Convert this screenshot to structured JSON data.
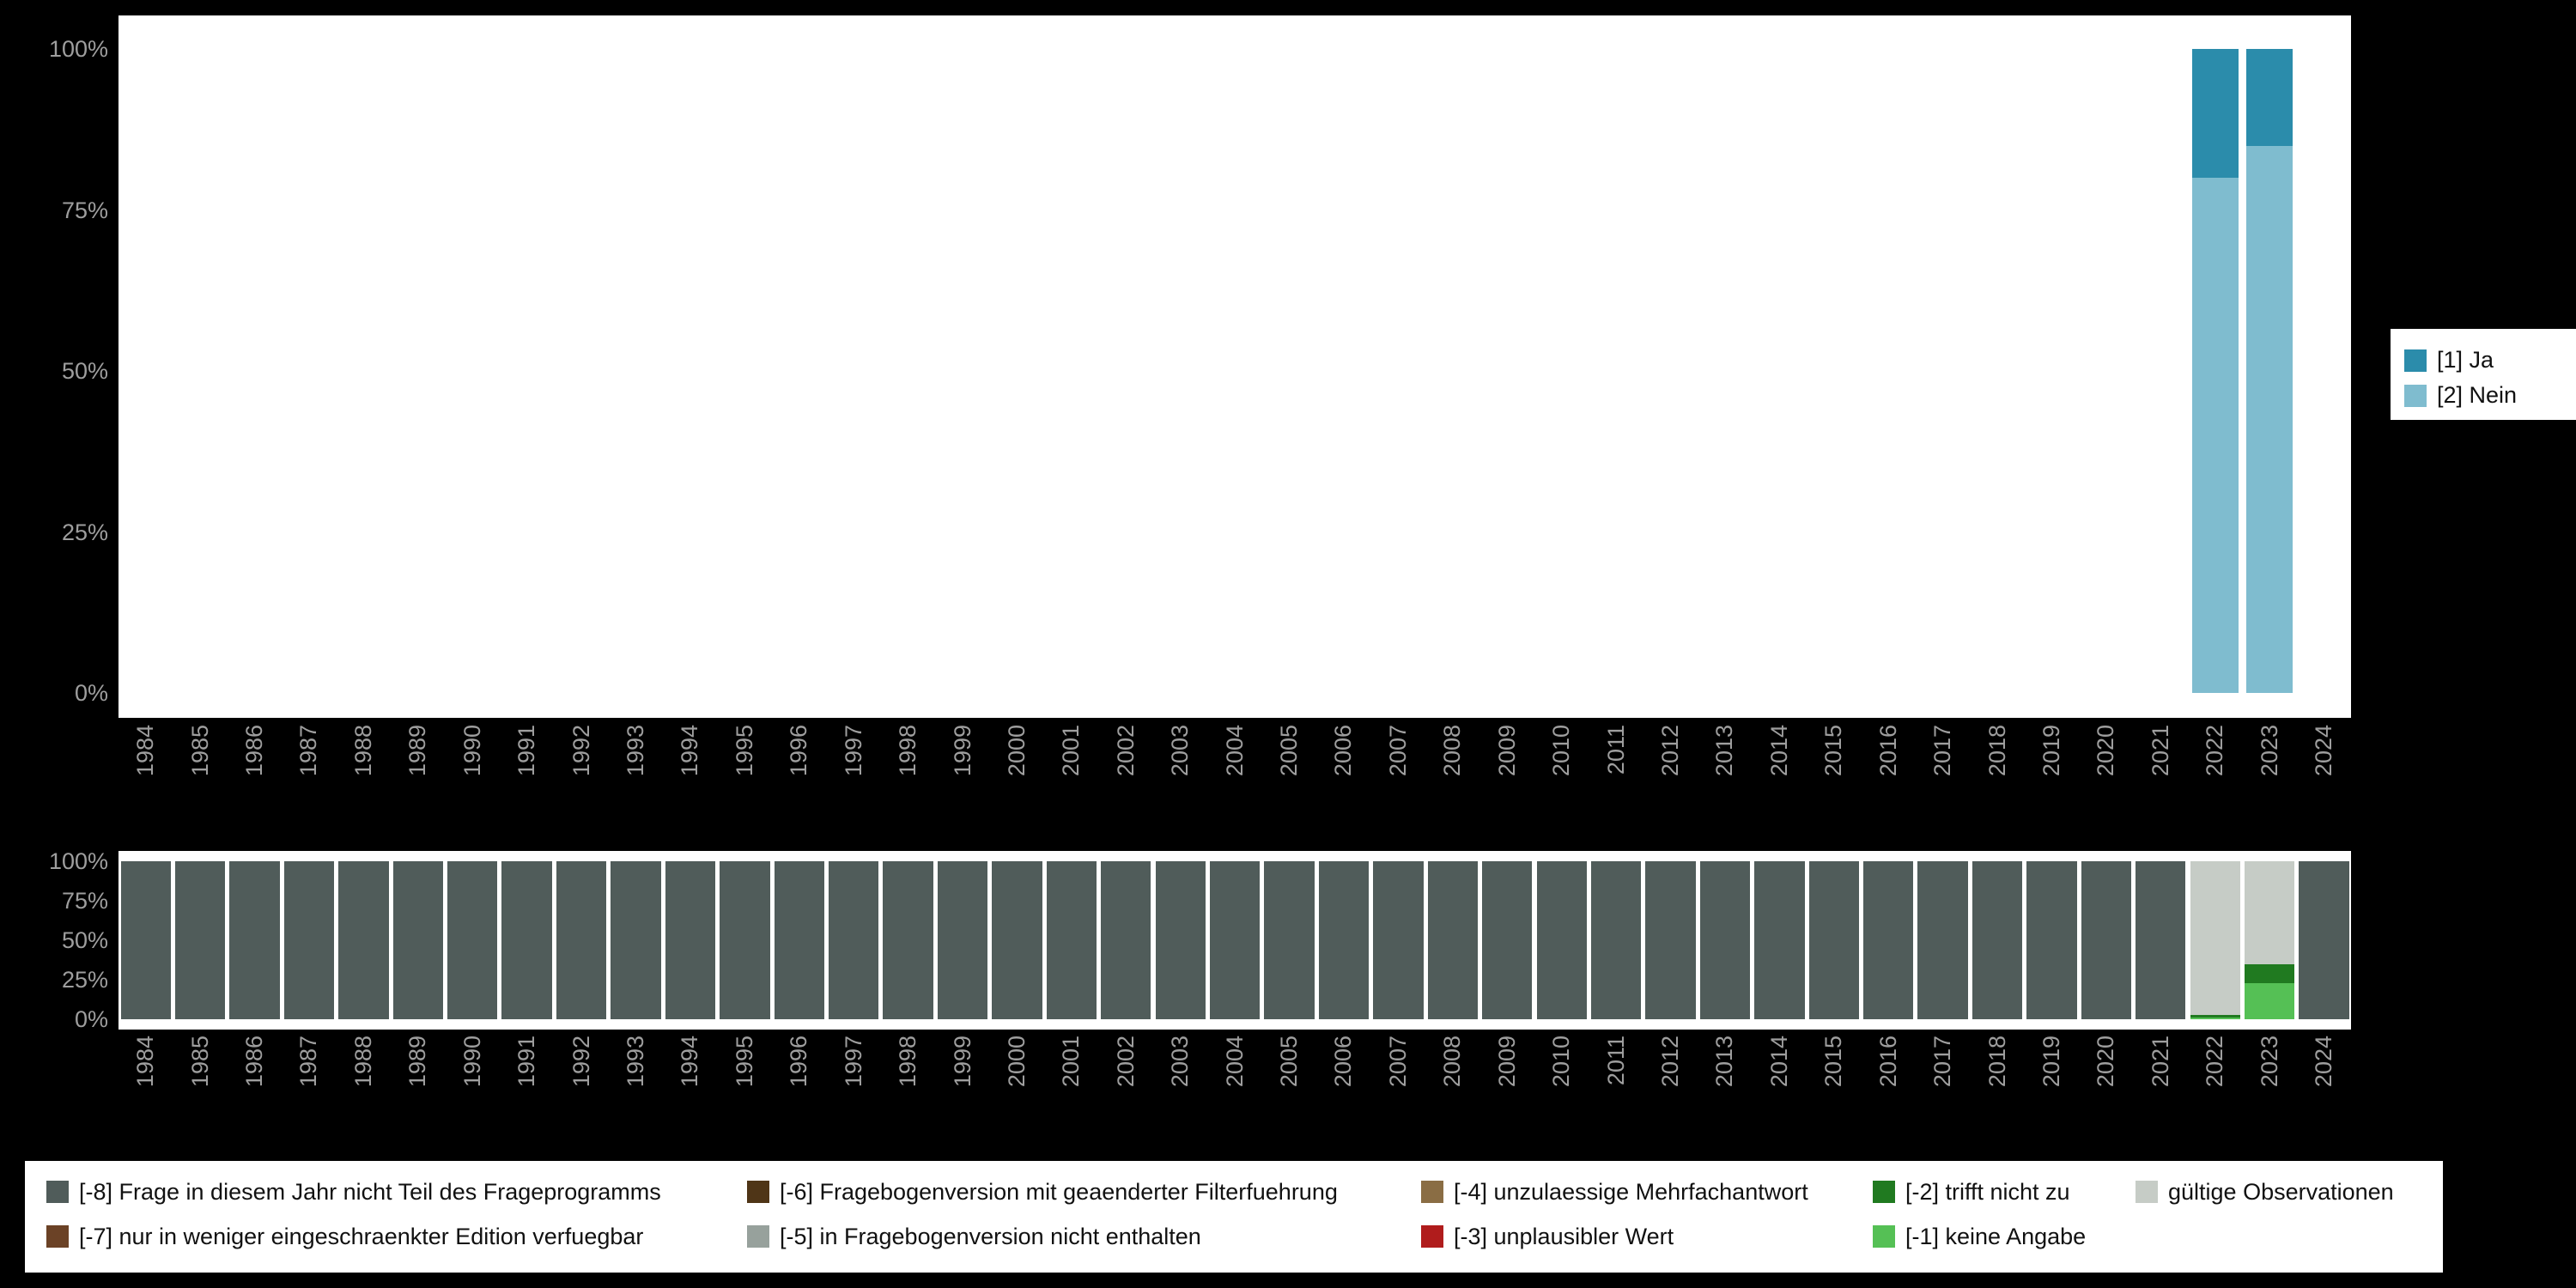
{
  "colors": {
    "background": "#000000",
    "panel": "#ffffff",
    "axis_text": "#9e9e9e",
    "legend_text": "#111111",
    "ja": "#2b8cab",
    "nein": "#7fbccf",
    "m8": "#505c5a",
    "m7": "#6b4226",
    "m6": "#4f3517",
    "m5": "#97a19c",
    "m4": "#8a6d44",
    "m3": "#b01c1c",
    "m2": "#207a20",
    "m1": "#55c055",
    "valid": "#c6ccc6"
  },
  "legend_top": {
    "items": [
      {
        "label": "[1] Ja",
        "color_key": "ja"
      },
      {
        "label": "[2] Nein",
        "color_key": "nein"
      }
    ]
  },
  "legend_bottom": {
    "columns": [
      [
        {
          "label": "[-8] Frage in diesem Jahr nicht Teil des Frageprogramms",
          "color_key": "m8"
        },
        {
          "label": "[-7] nur in weniger eingeschraenkter Edition verfuegbar",
          "color_key": "m7"
        }
      ],
      [
        {
          "label": "[-6] Fragebogenversion mit geaenderter Filterfuehrung",
          "color_key": "m6"
        },
        {
          "label": "[-5] in Fragebogenversion nicht enthalten",
          "color_key": "m5"
        }
      ],
      [
        {
          "label": "[-4] unzulaessige Mehrfachantwort",
          "color_key": "m4"
        },
        {
          "label": "[-3] unplausibler Wert",
          "color_key": "m3"
        }
      ],
      [
        {
          "label": "[-2] trifft nicht zu",
          "color_key": "m2"
        },
        {
          "label": "[-1] keine Angabe",
          "color_key": "m1"
        }
      ],
      [
        {
          "label": "gültige Observationen",
          "color_key": "valid"
        }
      ]
    ]
  },
  "chart_data": [
    {
      "type": "bar",
      "stacked": true,
      "title": "",
      "xlabel": "",
      "ylabel": "",
      "ylim": [
        0,
        100
      ],
      "grid": false,
      "legend_position": "right",
      "yticks": [
        "0%",
        "25%",
        "50%",
        "75%",
        "100%"
      ],
      "x": [
        1984,
        1985,
        1986,
        1987,
        1988,
        1989,
        1990,
        1991,
        1992,
        1993,
        1994,
        1995,
        1996,
        1997,
        1998,
        1999,
        2000,
        2001,
        2002,
        2003,
        2004,
        2005,
        2006,
        2007,
        2008,
        2009,
        2010,
        2011,
        2012,
        2013,
        2014,
        2015,
        2016,
        2017,
        2018,
        2019,
        2020,
        2021,
        2022,
        2023,
        2024
      ],
      "series": [
        {
          "name": "[2] Nein",
          "color_key": "nein",
          "values": [
            0,
            0,
            0,
            0,
            0,
            0,
            0,
            0,
            0,
            0,
            0,
            0,
            0,
            0,
            0,
            0,
            0,
            0,
            0,
            0,
            0,
            0,
            0,
            0,
            0,
            0,
            0,
            0,
            0,
            0,
            0,
            0,
            0,
            0,
            0,
            0,
            0,
            0,
            80,
            85,
            0
          ]
        },
        {
          "name": "[1] Ja",
          "color_key": "ja",
          "values": [
            0,
            0,
            0,
            0,
            0,
            0,
            0,
            0,
            0,
            0,
            0,
            0,
            0,
            0,
            0,
            0,
            0,
            0,
            0,
            0,
            0,
            0,
            0,
            0,
            0,
            0,
            0,
            0,
            0,
            0,
            0,
            0,
            0,
            0,
            0,
            0,
            0,
            0,
            20,
            15,
            0
          ]
        }
      ]
    },
    {
      "type": "bar",
      "stacked": true,
      "title": "",
      "xlabel": "",
      "ylabel": "",
      "ylim": [
        0,
        100
      ],
      "grid": false,
      "legend_position": "bottom",
      "yticks": [
        "0%",
        "25%",
        "50%",
        "75%",
        "100%"
      ],
      "x": [
        1984,
        1985,
        1986,
        1987,
        1988,
        1989,
        1990,
        1991,
        1992,
        1993,
        1994,
        1995,
        1996,
        1997,
        1998,
        1999,
        2000,
        2001,
        2002,
        2003,
        2004,
        2005,
        2006,
        2007,
        2008,
        2009,
        2010,
        2011,
        2012,
        2013,
        2014,
        2015,
        2016,
        2017,
        2018,
        2019,
        2020,
        2021,
        2022,
        2023,
        2024
      ],
      "series": [
        {
          "name": "[-1] keine Angabe",
          "color_key": "m1",
          "values": [
            0,
            0,
            0,
            0,
            0,
            0,
            0,
            0,
            0,
            0,
            0,
            0,
            0,
            0,
            0,
            0,
            0,
            0,
            0,
            0,
            0,
            0,
            0,
            0,
            0,
            0,
            0,
            0,
            0,
            0,
            0,
            0,
            0,
            0,
            0,
            0,
            0,
            0,
            1,
            23,
            0
          ]
        },
        {
          "name": "[-2] trifft nicht zu",
          "color_key": "m2",
          "values": [
            0,
            0,
            0,
            0,
            0,
            0,
            0,
            0,
            0,
            0,
            0,
            0,
            0,
            0,
            0,
            0,
            0,
            0,
            0,
            0,
            0,
            0,
            0,
            0,
            0,
            0,
            0,
            0,
            0,
            0,
            0,
            0,
            0,
            0,
            0,
            0,
            0,
            0,
            2,
            12,
            0
          ]
        },
        {
          "name": "[-3] unplausibler Wert",
          "color_key": "m3",
          "values": [
            0,
            0,
            0,
            0,
            0,
            0,
            0,
            0,
            0,
            0,
            0,
            0,
            0,
            0,
            0,
            0,
            0,
            0,
            0,
            0,
            0,
            0,
            0,
            0,
            0,
            0,
            0,
            0,
            0,
            0,
            0,
            0,
            0,
            0,
            0,
            0,
            0,
            0,
            0,
            0,
            0
          ]
        },
        {
          "name": "[-4] unzulaessige Mehrfachantwort",
          "color_key": "m4",
          "values": [
            0,
            0,
            0,
            0,
            0,
            0,
            0,
            0,
            0,
            0,
            0,
            0,
            0,
            0,
            0,
            0,
            0,
            0,
            0,
            0,
            0,
            0,
            0,
            0,
            0,
            0,
            0,
            0,
            0,
            0,
            0,
            0,
            0,
            0,
            0,
            0,
            0,
            0,
            0,
            0,
            0
          ]
        },
        {
          "name": "[-5] in Fragebogenversion nicht enthalten",
          "color_key": "m5",
          "values": [
            0,
            0,
            0,
            0,
            0,
            0,
            0,
            0,
            0,
            0,
            0,
            0,
            0,
            0,
            0,
            0,
            0,
            0,
            0,
            0,
            0,
            0,
            0,
            0,
            0,
            0,
            0,
            0,
            0,
            0,
            0,
            0,
            0,
            0,
            0,
            0,
            0,
            0,
            0,
            0,
            0
          ]
        },
        {
          "name": "[-6] Fragebogenversion mit geaenderter Filterfuehrung",
          "color_key": "m6",
          "values": [
            0,
            0,
            0,
            0,
            0,
            0,
            0,
            0,
            0,
            0,
            0,
            0,
            0,
            0,
            0,
            0,
            0,
            0,
            0,
            0,
            0,
            0,
            0,
            0,
            0,
            0,
            0,
            0,
            0,
            0,
            0,
            0,
            0,
            0,
            0,
            0,
            0,
            0,
            0,
            0,
            0
          ]
        },
        {
          "name": "[-7] nur in weniger eingeschraenkter Edition verfuegbar",
          "color_key": "m7",
          "values": [
            0,
            0,
            0,
            0,
            0,
            0,
            0,
            0,
            0,
            0,
            0,
            0,
            0,
            0,
            0,
            0,
            0,
            0,
            0,
            0,
            0,
            0,
            0,
            0,
            0,
            0,
            0,
            0,
            0,
            0,
            0,
            0,
            0,
            0,
            0,
            0,
            0,
            0,
            0,
            0,
            0
          ]
        },
        {
          "name": "[-8] Frage in diesem Jahr nicht Teil des Frageprogramms",
          "color_key": "m8",
          "values": [
            100,
            100,
            100,
            100,
            100,
            100,
            100,
            100,
            100,
            100,
            100,
            100,
            100,
            100,
            100,
            100,
            100,
            100,
            100,
            100,
            100,
            100,
            100,
            100,
            100,
            100,
            100,
            100,
            100,
            100,
            100,
            100,
            100,
            100,
            100,
            100,
            100,
            100,
            0,
            0,
            100
          ]
        },
        {
          "name": "gültige Observationen",
          "color_key": "valid",
          "values": [
            0,
            0,
            0,
            0,
            0,
            0,
            0,
            0,
            0,
            0,
            0,
            0,
            0,
            0,
            0,
            0,
            0,
            0,
            0,
            0,
            0,
            0,
            0,
            0,
            0,
            0,
            0,
            0,
            0,
            0,
            0,
            0,
            0,
            0,
            0,
            0,
            0,
            0,
            97,
            65,
            0
          ]
        }
      ]
    }
  ]
}
